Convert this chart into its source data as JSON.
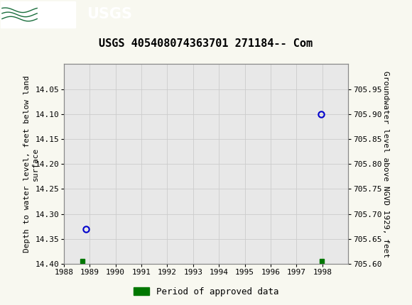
{
  "title": "USGS 405408074363701 271184-- Com",
  "title_fontsize": 11,
  "left_ylabel": "Depth to water level, feet below land\nsurface",
  "right_ylabel": "Groundwater level above NGVD 1929, feet",
  "xlim": [
    1988,
    1999
  ],
  "ylim_left_bottom": 14.4,
  "ylim_left_top": 14.0,
  "ylim_right_bottom": 705.6,
  "ylim_right_top": 706.0,
  "xticks": [
    1988,
    1989,
    1990,
    1991,
    1992,
    1993,
    1994,
    1995,
    1996,
    1997,
    1998
  ],
  "yticks_left": [
    14.05,
    14.1,
    14.15,
    14.2,
    14.25,
    14.3,
    14.35,
    14.4
  ],
  "yticks_right": [
    705.6,
    705.65,
    705.7,
    705.75,
    705.8,
    705.85,
    705.9,
    705.95
  ],
  "circle_points_x": [
    1988.85,
    1997.95
  ],
  "circle_points_y": [
    14.33,
    14.1
  ],
  "square_points_x": [
    1988.72,
    1997.97
  ],
  "square_points_y": [
    14.395,
    14.395
  ],
  "circle_color": "#0000cc",
  "square_color": "#007700",
  "bg_color": "#f8f8f0",
  "plot_bg_color": "#e8e8e8",
  "header_color": "#1a6e3c",
  "grid_color": "#cccccc",
  "legend_label": "Period of approved data",
  "legend_square_color": "#007700",
  "tick_fontsize": 8,
  "label_fontsize": 8
}
